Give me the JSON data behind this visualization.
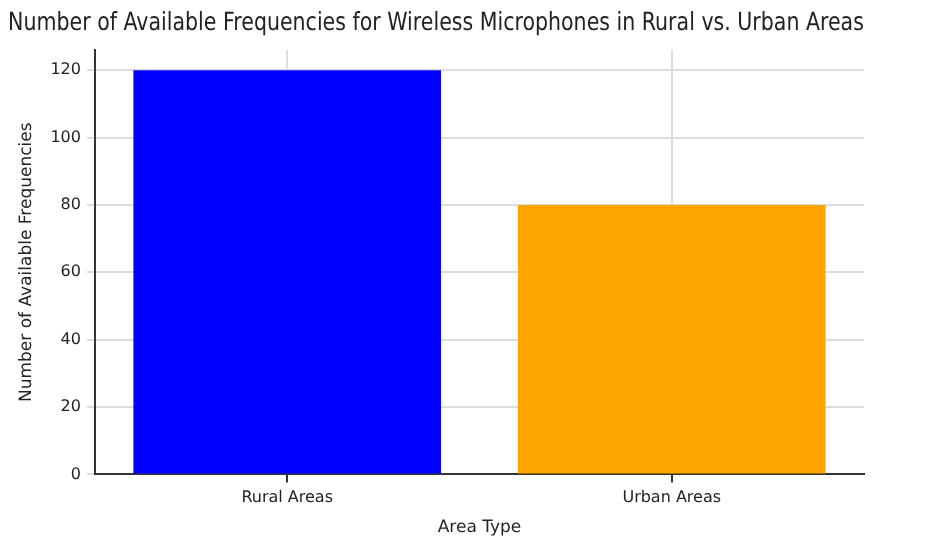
{
  "chart_data": {
    "type": "bar",
    "title": "Number of Available Frequencies for Wireless Microphones in Rural vs. Urban Areas",
    "xlabel": "Area Type",
    "ylabel": "Number of Available Frequencies",
    "categories": [
      "Rural Areas",
      "Urban Areas"
    ],
    "values": [
      120,
      80
    ],
    "colors": [
      "#0000ff",
      "#ffa500"
    ],
    "ylim": [
      0,
      126
    ],
    "yticks": [
      0,
      20,
      40,
      60,
      80,
      100,
      120
    ],
    "grid": true
  }
}
